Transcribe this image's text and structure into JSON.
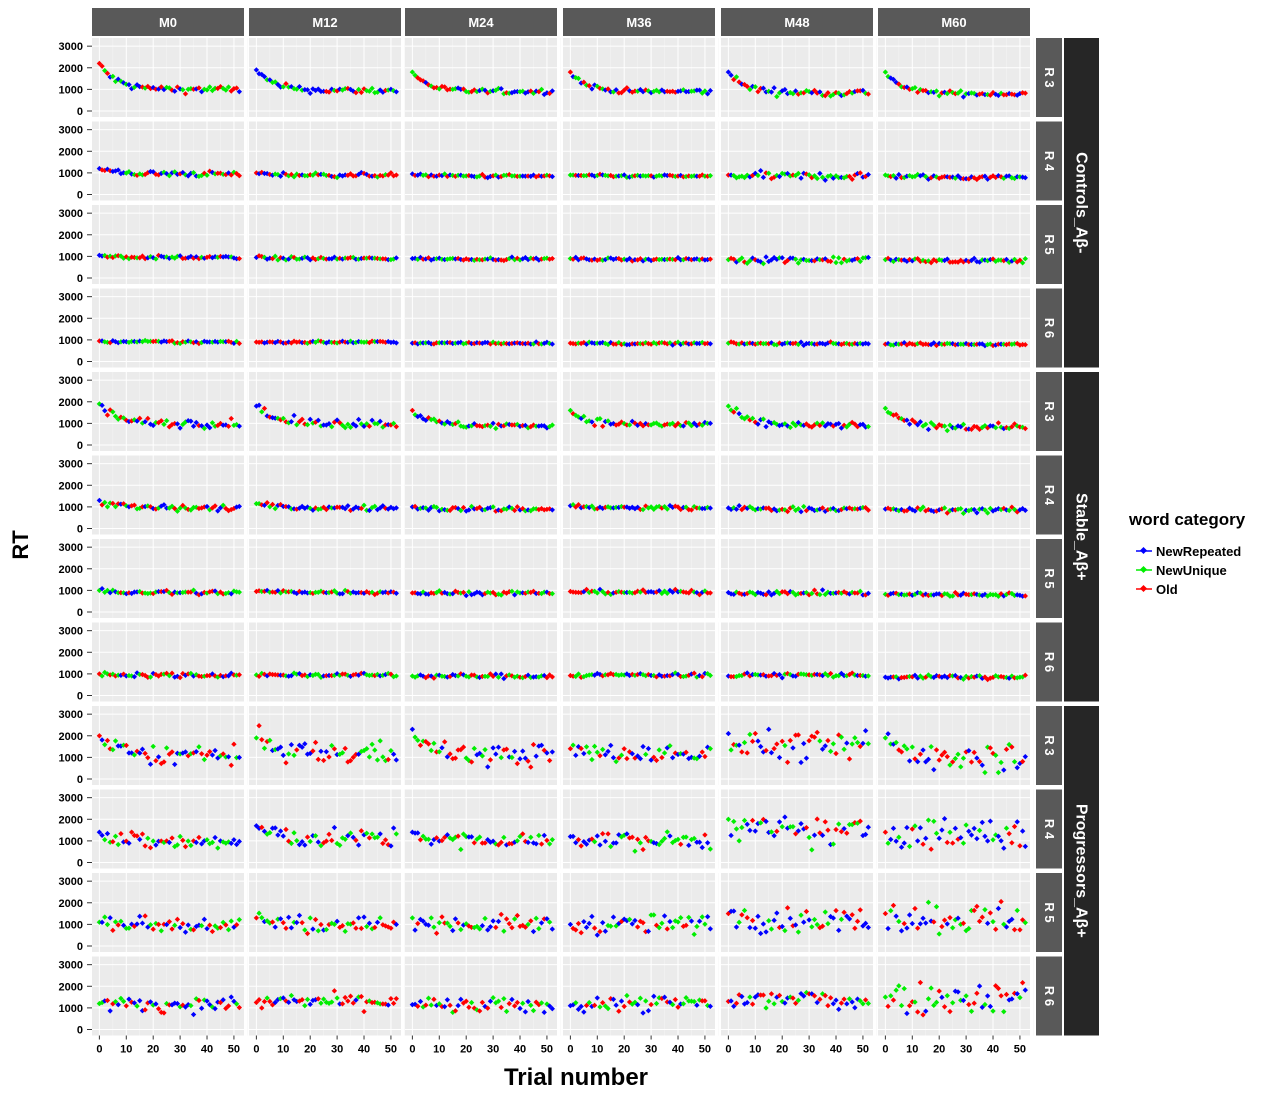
{
  "chart_data": {
    "type": "scatter",
    "xlabel": "Trial number",
    "ylabel": "RT",
    "x_ticks": [
      0,
      10,
      20,
      30,
      40,
      50
    ],
    "xlim": [
      -2,
      53
    ],
    "y_ticks": [
      0,
      1000,
      2000,
      3000
    ],
    "ylim": [
      0,
      3100
    ],
    "columns": [
      "M0",
      "M12",
      "M24",
      "M36",
      "M48",
      "M60"
    ],
    "rows": [
      "R 3",
      "R 4",
      "R 5",
      "R 6"
    ],
    "groups": [
      "Controls_Aβ-",
      "Stable_Aβ+",
      "Progressors_Aβ+"
    ],
    "legend": {
      "title": "word category",
      "position": "right",
      "entries": [
        "NewRepeated",
        "NewUnique",
        "Old"
      ]
    },
    "colors": {
      "NewRepeated": "#0000ff",
      "NewUnique": "#00ee00",
      "Old": "#ff0000",
      "panel_bg": "#ebebeb",
      "strip_bg": "#595959",
      "group_bg": "#262626"
    },
    "grid": true,
    "note_on_values": "Each panel is a scatter of ~54 trials (x = 0..52, step ~1) coloured by word category; per-panel RT trend (ms) summarised by start / asymptote / noise as read from the figure.",
    "panels": [
      {
        "group": "Controls_Aβ-",
        "row": "R 3",
        "col": "M0",
        "start": 2200,
        "end": 1000,
        "noise": 80
      },
      {
        "group": "Controls_Aβ-",
        "row": "R 3",
        "col": "M12",
        "start": 1900,
        "end": 950,
        "noise": 70
      },
      {
        "group": "Controls_Aβ-",
        "row": "R 3",
        "col": "M24",
        "start": 1800,
        "end": 900,
        "noise": 60
      },
      {
        "group": "Controls_Aβ-",
        "row": "R 3",
        "col": "M36",
        "start": 1800,
        "end": 900,
        "noise": 60
      },
      {
        "group": "Controls_Aβ-",
        "row": "R 3",
        "col": "M48",
        "start": 1800,
        "end": 850,
        "noise": 80
      },
      {
        "group": "Controls_Aβ-",
        "row": "R 3",
        "col": "M60",
        "start": 1800,
        "end": 800,
        "noise": 60
      },
      {
        "group": "Controls_Aβ-",
        "row": "R 4",
        "col": "M0",
        "start": 1200,
        "end": 950,
        "noise": 60
      },
      {
        "group": "Controls_Aβ-",
        "row": "R 4",
        "col": "M12",
        "start": 1000,
        "end": 900,
        "noise": 50
      },
      {
        "group": "Controls_Aβ-",
        "row": "R 4",
        "col": "M24",
        "start": 950,
        "end": 850,
        "noise": 40
      },
      {
        "group": "Controls_Aβ-",
        "row": "R 4",
        "col": "M36",
        "start": 900,
        "end": 850,
        "noise": 30
      },
      {
        "group": "Controls_Aβ-",
        "row": "R 4",
        "col": "M48",
        "start": 900,
        "end": 850,
        "noise": 90
      },
      {
        "group": "Controls_Aβ-",
        "row": "R 4",
        "col": "M60",
        "start": 900,
        "end": 800,
        "noise": 60
      },
      {
        "group": "Controls_Aβ-",
        "row": "R 5",
        "col": "M0",
        "start": 1050,
        "end": 950,
        "noise": 40
      },
      {
        "group": "Controls_Aβ-",
        "row": "R 5",
        "col": "M12",
        "start": 950,
        "end": 900,
        "noise": 40
      },
      {
        "group": "Controls_Aβ-",
        "row": "R 5",
        "col": "M24",
        "start": 900,
        "end": 880,
        "noise": 30
      },
      {
        "group": "Controls_Aβ-",
        "row": "R 5",
        "col": "M36",
        "start": 900,
        "end": 860,
        "noise": 30
      },
      {
        "group": "Controls_Aβ-",
        "row": "R 5",
        "col": "M48",
        "start": 850,
        "end": 850,
        "noise": 80
      },
      {
        "group": "Controls_Aβ-",
        "row": "R 5",
        "col": "M60",
        "start": 850,
        "end": 800,
        "noise": 50
      },
      {
        "group": "Controls_Aβ-",
        "row": "R 6",
        "col": "M0",
        "start": 950,
        "end": 900,
        "noise": 40
      },
      {
        "group": "Controls_Aβ-",
        "row": "R 6",
        "col": "M12",
        "start": 900,
        "end": 900,
        "noise": 30
      },
      {
        "group": "Controls_Aβ-",
        "row": "R 6",
        "col": "M24",
        "start": 850,
        "end": 850,
        "noise": 25
      },
      {
        "group": "Controls_Aβ-",
        "row": "R 6",
        "col": "M36",
        "start": 850,
        "end": 830,
        "noise": 30
      },
      {
        "group": "Controls_Aβ-",
        "row": "R 6",
        "col": "M48",
        "start": 850,
        "end": 830,
        "noise": 30
      },
      {
        "group": "Controls_Aβ-",
        "row": "R 6",
        "col": "M60",
        "start": 800,
        "end": 800,
        "noise": 30
      },
      {
        "group": "Stable_Aβ+",
        "row": "R 3",
        "col": "M0",
        "start": 1900,
        "end": 1000,
        "noise": 100
      },
      {
        "group": "Stable_Aβ+",
        "row": "R 3",
        "col": "M12",
        "start": 1800,
        "end": 1000,
        "noise": 100
      },
      {
        "group": "Stable_Aβ+",
        "row": "R 3",
        "col": "M24",
        "start": 1600,
        "end": 900,
        "noise": 70
      },
      {
        "group": "Stable_Aβ+",
        "row": "R 3",
        "col": "M36",
        "start": 1600,
        "end": 950,
        "noise": 80
      },
      {
        "group": "Stable_Aβ+",
        "row": "R 3",
        "col": "M48",
        "start": 1800,
        "end": 900,
        "noise": 80
      },
      {
        "group": "Stable_Aβ+",
        "row": "R 3",
        "col": "M60",
        "start": 1700,
        "end": 850,
        "noise": 80
      },
      {
        "group": "Stable_Aβ+",
        "row": "R 4",
        "col": "M0",
        "start": 1300,
        "end": 950,
        "noise": 80
      },
      {
        "group": "Stable_Aβ+",
        "row": "R 4",
        "col": "M12",
        "start": 1150,
        "end": 950,
        "noise": 60
      },
      {
        "group": "Stable_Aβ+",
        "row": "R 4",
        "col": "M24",
        "start": 1000,
        "end": 900,
        "noise": 60
      },
      {
        "group": "Stable_Aβ+",
        "row": "R 4",
        "col": "M36",
        "start": 1050,
        "end": 950,
        "noise": 60
      },
      {
        "group": "Stable_Aβ+",
        "row": "R 4",
        "col": "M48",
        "start": 950,
        "end": 900,
        "noise": 60
      },
      {
        "group": "Stable_Aβ+",
        "row": "R 4",
        "col": "M60",
        "start": 900,
        "end": 850,
        "noise": 60
      },
      {
        "group": "Stable_Aβ+",
        "row": "R 5",
        "col": "M0",
        "start": 1000,
        "end": 900,
        "noise": 60
      },
      {
        "group": "Stable_Aβ+",
        "row": "R 5",
        "col": "M12",
        "start": 950,
        "end": 920,
        "noise": 50
      },
      {
        "group": "Stable_Aβ+",
        "row": "R 5",
        "col": "M24",
        "start": 880,
        "end": 880,
        "noise": 50
      },
      {
        "group": "Stable_Aβ+",
        "row": "R 5",
        "col": "M36",
        "start": 950,
        "end": 920,
        "noise": 50
      },
      {
        "group": "Stable_Aβ+",
        "row": "R 5",
        "col": "M48",
        "start": 900,
        "end": 880,
        "noise": 50
      },
      {
        "group": "Stable_Aβ+",
        "row": "R 5",
        "col": "M60",
        "start": 820,
        "end": 800,
        "noise": 50
      },
      {
        "group": "Stable_Aβ+",
        "row": "R 6",
        "col": "M0",
        "start": 1000,
        "end": 950,
        "noise": 60
      },
      {
        "group": "Stable_Aβ+",
        "row": "R 6",
        "col": "M12",
        "start": 950,
        "end": 950,
        "noise": 50
      },
      {
        "group": "Stable_Aβ+",
        "row": "R 6",
        "col": "M24",
        "start": 900,
        "end": 900,
        "noise": 50
      },
      {
        "group": "Stable_Aβ+",
        "row": "R 6",
        "col": "M36",
        "start": 920,
        "end": 950,
        "noise": 50
      },
      {
        "group": "Stable_Aβ+",
        "row": "R 6",
        "col": "M48",
        "start": 900,
        "end": 950,
        "noise": 50
      },
      {
        "group": "Stable_Aβ+",
        "row": "R 6",
        "col": "M60",
        "start": 850,
        "end": 850,
        "noise": 50
      },
      {
        "group": "Progressors_Aβ+",
        "row": "R 3",
        "col": "M0",
        "start": 2000,
        "end": 1100,
        "noise": 220
      },
      {
        "group": "Progressors_Aβ+",
        "row": "R 3",
        "col": "M12",
        "start": 1900,
        "end": 1200,
        "noise": 250
      },
      {
        "group": "Progressors_Aβ+",
        "row": "R 3",
        "col": "M24",
        "start": 2300,
        "end": 1100,
        "noise": 250
      },
      {
        "group": "Progressors_Aβ+",
        "row": "R 3",
        "col": "M36",
        "start": 1400,
        "end": 1150,
        "noise": 220
      },
      {
        "group": "Progressors_Aβ+",
        "row": "R 3",
        "col": "M48",
        "start": 2100,
        "end": 1500,
        "noise": 350
      },
      {
        "group": "Progressors_Aβ+",
        "row": "R 3",
        "col": "M60",
        "start": 1900,
        "end": 1100,
        "noise": 380
      },
      {
        "group": "Progressors_Aβ+",
        "row": "R 4",
        "col": "M0",
        "start": 1400,
        "end": 950,
        "noise": 200
      },
      {
        "group": "Progressors_Aβ+",
        "row": "R 4",
        "col": "M12",
        "start": 1700,
        "end": 1100,
        "noise": 220
      },
      {
        "group": "Progressors_Aβ+",
        "row": "R 4",
        "col": "M24",
        "start": 1400,
        "end": 1000,
        "noise": 180
      },
      {
        "group": "Progressors_Aβ+",
        "row": "R 4",
        "col": "M36",
        "start": 1200,
        "end": 1000,
        "noise": 200
      },
      {
        "group": "Progressors_Aβ+",
        "row": "R 4",
        "col": "M48",
        "start": 2000,
        "end": 1400,
        "noise": 330
      },
      {
        "group": "Progressors_Aβ+",
        "row": "R 4",
        "col": "M60",
        "start": 1400,
        "end": 1300,
        "noise": 380
      },
      {
        "group": "Progressors_Aβ+",
        "row": "R 5",
        "col": "M0",
        "start": 1100,
        "end": 1000,
        "noise": 200
      },
      {
        "group": "Progressors_Aβ+",
        "row": "R 5",
        "col": "M12",
        "start": 1300,
        "end": 1000,
        "noise": 200
      },
      {
        "group": "Progressors_Aβ+",
        "row": "R 5",
        "col": "M24",
        "start": 1300,
        "end": 1000,
        "noise": 200
      },
      {
        "group": "Progressors_Aβ+",
        "row": "R 5",
        "col": "M36",
        "start": 1000,
        "end": 1000,
        "noise": 220
      },
      {
        "group": "Progressors_Aβ+",
        "row": "R 5",
        "col": "M48",
        "start": 1500,
        "end": 1200,
        "noise": 280
      },
      {
        "group": "Progressors_Aβ+",
        "row": "R 5",
        "col": "M60",
        "start": 1500,
        "end": 1300,
        "noise": 380
      },
      {
        "group": "Progressors_Aβ+",
        "row": "R 6",
        "col": "M0",
        "start": 1200,
        "end": 1150,
        "noise": 160
      },
      {
        "group": "Progressors_Aβ+",
        "row": "R 6",
        "col": "M12",
        "start": 1250,
        "end": 1300,
        "noise": 180
      },
      {
        "group": "Progressors_Aβ+",
        "row": "R 6",
        "col": "M24",
        "start": 1150,
        "end": 1100,
        "noise": 170
      },
      {
        "group": "Progressors_Aβ+",
        "row": "R 6",
        "col": "M36",
        "start": 1100,
        "end": 1200,
        "noise": 200
      },
      {
        "group": "Progressors_Aβ+",
        "row": "R 6",
        "col": "M48",
        "start": 1300,
        "end": 1400,
        "noise": 280
      },
      {
        "group": "Progressors_Aβ+",
        "row": "R 6",
        "col": "M60",
        "start": 1500,
        "end": 1500,
        "noise": 380
      }
    ]
  }
}
